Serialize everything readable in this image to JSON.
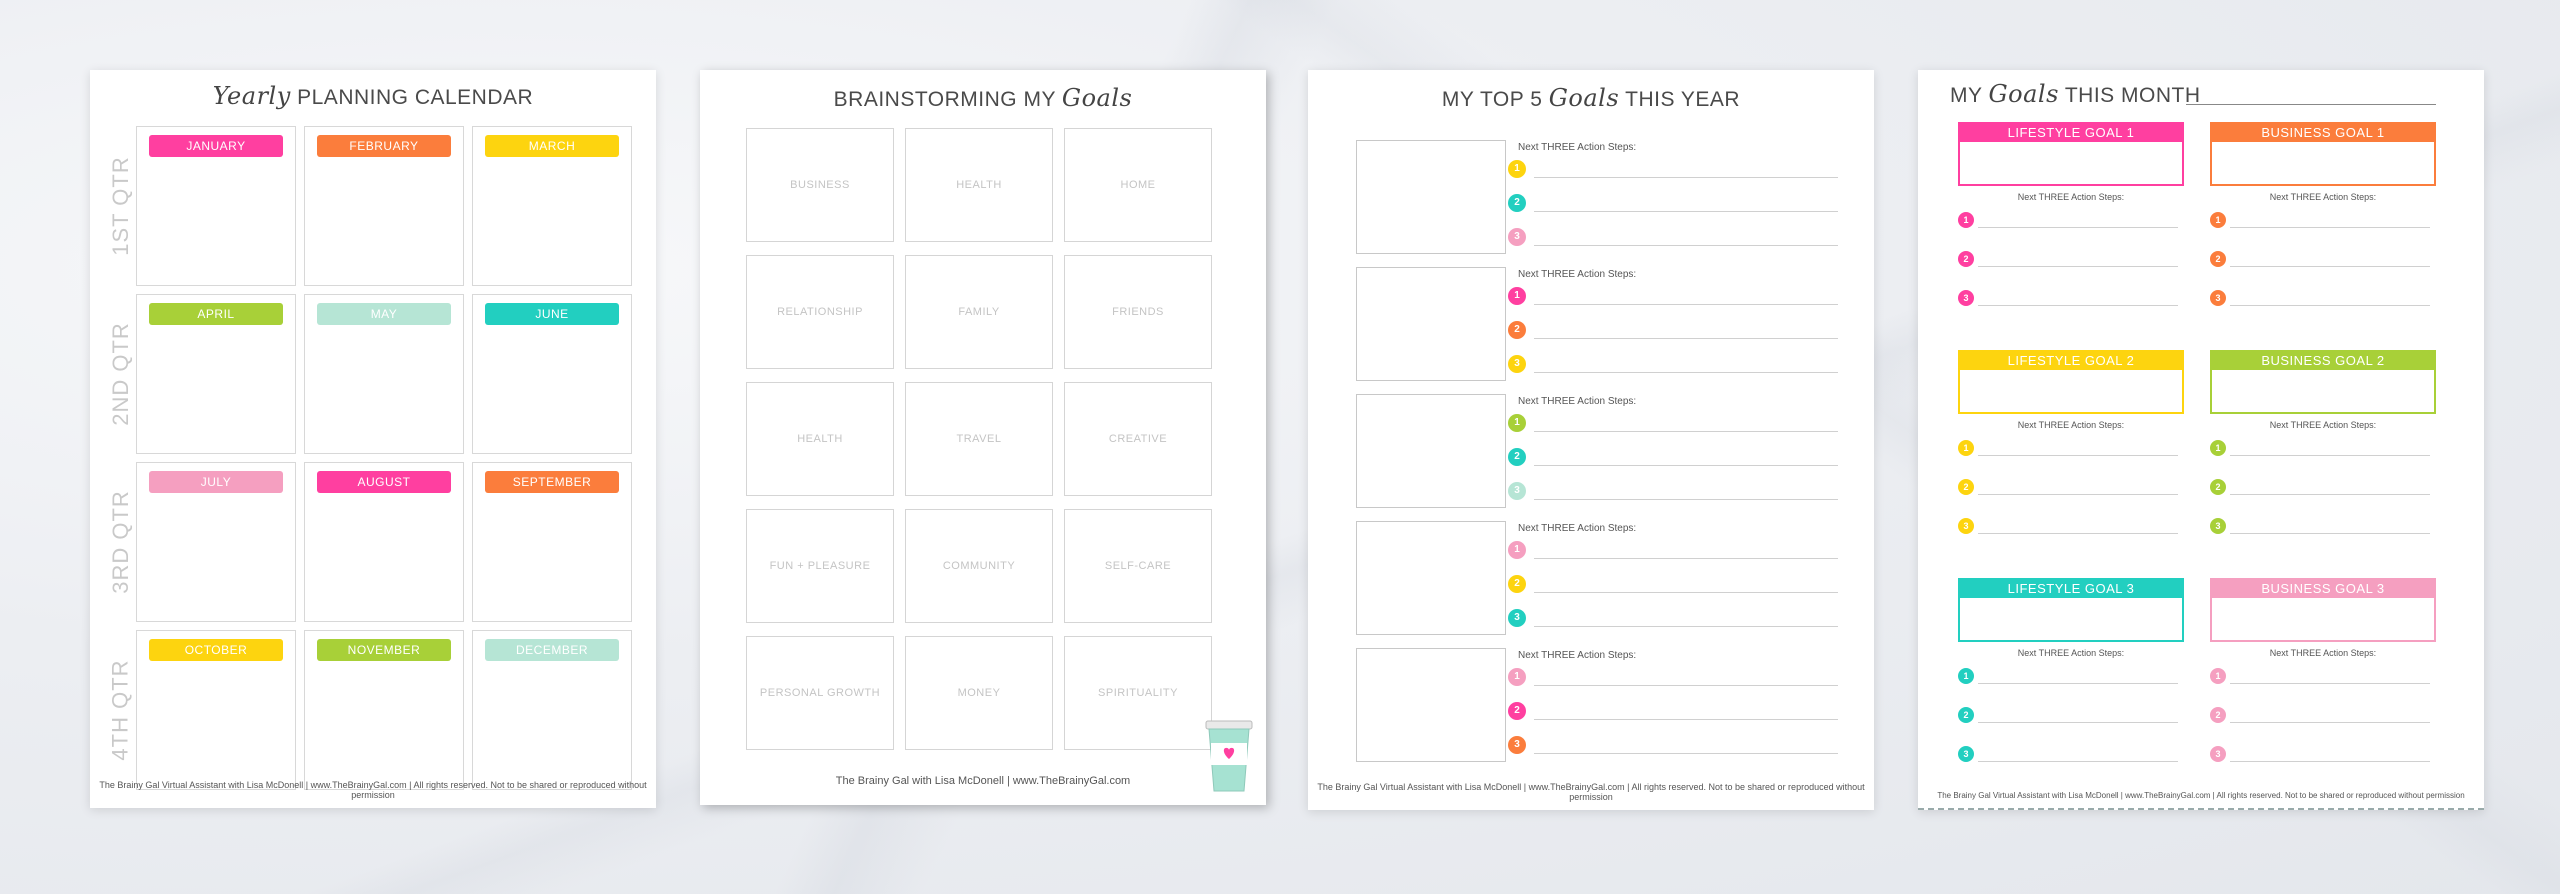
{
  "colors": {
    "pink": "#ff3fa0",
    "orange": "#fb7d3c",
    "yellow": "#fdd40f",
    "green": "#a8d038",
    "mint": "#b6e5d5",
    "teal": "#22cfc0",
    "lightpink": "#f59fc0"
  },
  "calendar": {
    "title_script": "Yearly",
    "title_rest": "PLANNING CALENDAR",
    "quarters": [
      "1ST QTR",
      "2ND QTR",
      "3RD QTR",
      "4TH QTR"
    ],
    "months": [
      {
        "label": "JANUARY",
        "color": "#ff3fa0"
      },
      {
        "label": "FEBRUARY",
        "color": "#fb7d3c"
      },
      {
        "label": "MARCH",
        "color": "#fdd40f"
      },
      {
        "label": "APRIL",
        "color": "#a8d038"
      },
      {
        "label": "MAY",
        "color": "#b6e5d5"
      },
      {
        "label": "JUNE",
        "color": "#22cfc0"
      },
      {
        "label": "JULY",
        "color": "#f59fc0"
      },
      {
        "label": "AUGUST",
        "color": "#ff3fa0"
      },
      {
        "label": "SEPTEMBER",
        "color": "#fb7d3c"
      },
      {
        "label": "OCTOBER",
        "color": "#fdd40f"
      },
      {
        "label": "NOVEMBER",
        "color": "#a8d038"
      },
      {
        "label": "DECEMBER",
        "color": "#b6e5d5"
      }
    ],
    "footer": "The Brainy Gal Virtual Assistant with Lisa McDonell  |  www.TheBrainyGal.com  |  All rights reserved. Not to be shared or reproduced without permission"
  },
  "brainstorm": {
    "title_rest": "BRAINSTORMING MY",
    "title_script": "Goals",
    "categories": [
      "BUSINESS",
      "HEALTH",
      "HOME",
      "RELATIONSHIP",
      "FAMILY",
      "FRIENDS",
      "HEALTH",
      "TRAVEL",
      "CREATIVE",
      "FUN + PLEASURE",
      "COMMUNITY",
      "SELF-CARE",
      "PERSONAL GROWTH",
      "MONEY",
      "SPIRITUALITY"
    ],
    "footer": "The Brainy Gal with Lisa McDonell  |  www.TheBrainyGal.com"
  },
  "top5": {
    "title_before": "MY TOP 5",
    "title_script": "Goals",
    "title_after": "THIS YEAR",
    "steps_heading": "Next THREE Action Steps:",
    "goals": [
      {
        "steps": [
          {
            "n": "1",
            "color": "#fdd40f"
          },
          {
            "n": "2",
            "color": "#22cfc0"
          },
          {
            "n": "3",
            "color": "#f59fc0"
          }
        ]
      },
      {
        "steps": [
          {
            "n": "1",
            "color": "#ff3fa0"
          },
          {
            "n": "2",
            "color": "#fb7d3c"
          },
          {
            "n": "3",
            "color": "#fdd40f"
          }
        ]
      },
      {
        "steps": [
          {
            "n": "1",
            "color": "#a8d038"
          },
          {
            "n": "2",
            "color": "#22cfc0"
          },
          {
            "n": "3",
            "color": "#b6e5d5"
          }
        ]
      },
      {
        "steps": [
          {
            "n": "1",
            "color": "#f59fc0"
          },
          {
            "n": "2",
            "color": "#fdd40f"
          },
          {
            "n": "3",
            "color": "#22cfc0"
          }
        ]
      },
      {
        "steps": [
          {
            "n": "1",
            "color": "#f59fc0"
          },
          {
            "n": "2",
            "color": "#ff3fa0"
          },
          {
            "n": "3",
            "color": "#fb7d3c"
          }
        ]
      }
    ],
    "footer": "The Brainy Gal Virtual Assistant with Lisa McDonell  |  www.TheBrainyGal.com  |  All rights reserved. Not to be shared or reproduced without permission"
  },
  "month": {
    "title_before": "MY",
    "title_script": "Goals",
    "title_after": "THIS MONTH",
    "steps_heading": "Next THREE Action Steps:",
    "cards": [
      {
        "label": "LIFESTYLE GOAL 1",
        "color": "#ff3fa0"
      },
      {
        "label": "BUSINESS GOAL 1",
        "color": "#fb7d3c"
      },
      {
        "label": "LIFESTYLE GOAL 2",
        "color": "#fdd40f"
      },
      {
        "label": "BUSINESS GOAL 2",
        "color": "#a8d038"
      },
      {
        "label": "LIFESTYLE GOAL 3",
        "color": "#22cfc0"
      },
      {
        "label": "BUSINESS GOAL 3",
        "color": "#f59fc0"
      }
    ],
    "footer": "The Brainy Gal Virtual Assistant with Lisa McDonell  |  www.TheBrainyGal.com  |  All rights reserved. Not to be shared or reproduced without permission"
  }
}
